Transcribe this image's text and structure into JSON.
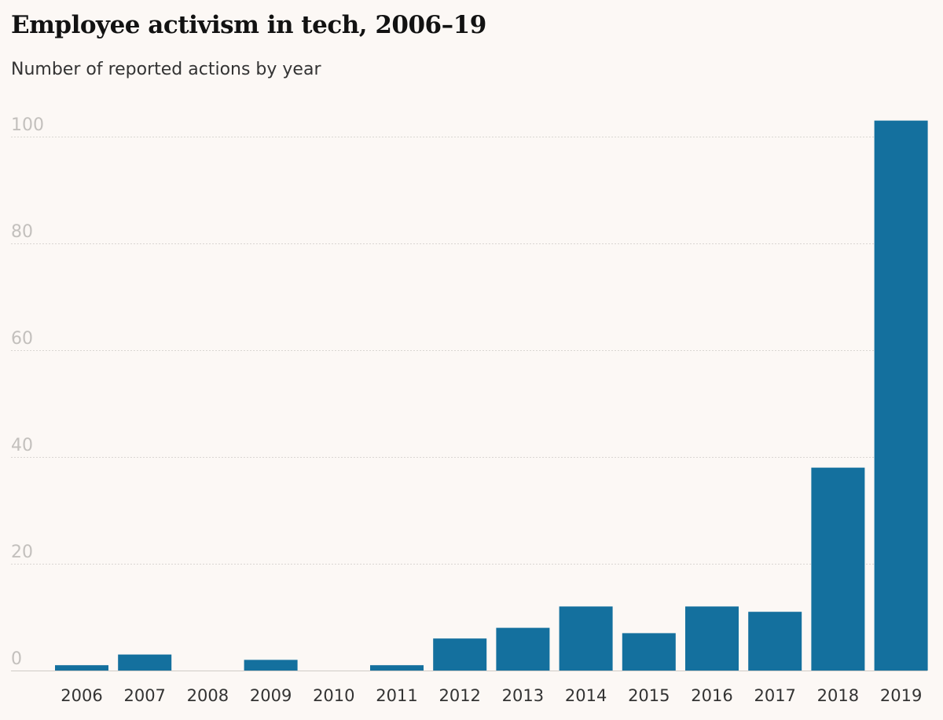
{
  "title": "Employee activism in tech, 2006–19",
  "subtitle": "Number of reported actions by year",
  "colors": {
    "bar": "#14709e",
    "background": "#fcf8f5",
    "gridline": "#d9d6d2",
    "tick_label": "#c3c0bd",
    "category_label": "#333333"
  },
  "chart_data": {
    "type": "bar",
    "title": "Employee activism in tech, 2006–19",
    "subtitle": "Number of reported actions by year",
    "xlabel": "",
    "ylabel": "",
    "categories": [
      "2006",
      "2007",
      "2008",
      "2009",
      "2010",
      "2011",
      "2012",
      "2013",
      "2014",
      "2015",
      "2016",
      "2017",
      "2018",
      "2019"
    ],
    "values": [
      1,
      3,
      0,
      2,
      0,
      1,
      6,
      8,
      12,
      7,
      12,
      11,
      38,
      103
    ],
    "ylim": [
      0,
      100
    ],
    "yticks": [
      0,
      20,
      40,
      60,
      80,
      100
    ],
    "grid": true,
    "legend": "none"
  }
}
